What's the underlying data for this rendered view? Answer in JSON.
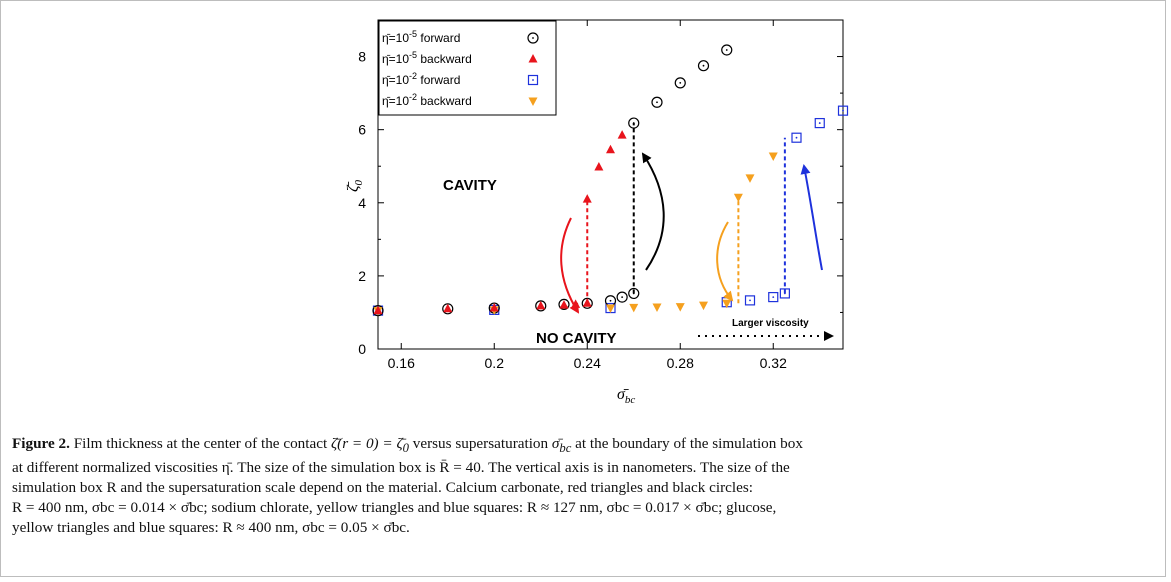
{
  "chart_data": {
    "type": "scatter",
    "xlabel": "σ̄bc",
    "ylabel": "ζ̄0",
    "xlim": [
      0.15,
      0.35
    ],
    "ylim": [
      0,
      9
    ],
    "xticks": [
      "0.16",
      "0.2",
      "0.24",
      "0.28",
      "0.32"
    ],
    "xtick_values": [
      0.16,
      0.2,
      0.24,
      0.28,
      0.32
    ],
    "yticks": [
      "0",
      "2",
      "4",
      "6",
      "8"
    ],
    "ytick_values": [
      0,
      2,
      4,
      6,
      8
    ],
    "legend_placement": "top-left",
    "series": [
      {
        "name": "η̄=10⁻⁵ forward",
        "legend_prefix": "η̄=10",
        "legend_exp": "-5",
        "legend_suffix": " forward",
        "marker": "circle",
        "color": "#000000",
        "x": [
          0.15,
          0.18,
          0.2,
          0.22,
          0.23,
          0.24,
          0.25,
          0.255,
          0.26,
          0.26,
          0.27,
          0.28,
          0.29,
          0.3
        ],
        "y": [
          1.05,
          1.1,
          1.12,
          1.18,
          1.22,
          1.25,
          1.32,
          1.42,
          1.52,
          6.18,
          6.75,
          7.28,
          7.75,
          8.18
        ]
      },
      {
        "name": "η̄=10⁻⁵ backward",
        "legend_prefix": "η̄=10",
        "legend_exp": "-5",
        "legend_suffix": " backward",
        "marker": "triangle-up",
        "color": "#e8141c",
        "x": [
          0.15,
          0.18,
          0.2,
          0.22,
          0.23,
          0.235,
          0.24,
          0.24,
          0.245,
          0.25,
          0.255
        ],
        "y": [
          1.05,
          1.1,
          1.12,
          1.18,
          1.2,
          1.22,
          1.25,
          4.1,
          4.98,
          5.45,
          5.85
        ]
      },
      {
        "name": "η̄=10⁻² forward",
        "legend_prefix": "η̄=10",
        "legend_exp": "-2",
        "legend_suffix": " forward",
        "marker": "square",
        "color": "#1e32dc",
        "x": [
          0.15,
          0.2,
          0.25,
          0.3,
          0.31,
          0.32,
          0.325,
          0.33,
          0.34,
          0.35
        ],
        "y": [
          1.05,
          1.07,
          1.12,
          1.28,
          1.33,
          1.42,
          1.52,
          5.78,
          6.18,
          6.52
        ]
      },
      {
        "name": "η̄=10⁻² backward",
        "legend_prefix": "η̄=10",
        "legend_exp": "-2",
        "legend_suffix": " backward",
        "marker": "triangle-down",
        "color": "#f5a01e",
        "x": [
          0.15,
          0.2,
          0.25,
          0.26,
          0.27,
          0.28,
          0.29,
          0.3,
          0.305,
          0.31,
          0.32
        ],
        "y": [
          1.05,
          1.07,
          1.12,
          1.14,
          1.15,
          1.16,
          1.2,
          1.25,
          4.15,
          4.68,
          5.28
        ]
      }
    ],
    "annotations": {
      "cavity": "CAVITY",
      "no_cavity": "NO CAVITY",
      "larger_viscosity": "Larger viscosity"
    },
    "dashed_lines": [
      {
        "x": 0.24,
        "y0": 1.25,
        "y1": 4.1,
        "color": "#e8141c"
      },
      {
        "x": 0.26,
        "y0": 1.52,
        "y1": 6.18,
        "color": "#000000"
      },
      {
        "x": 0.305,
        "y0": 1.25,
        "y1": 4.15,
        "color": "#f5a01e"
      },
      {
        "x": 0.325,
        "y0": 1.52,
        "y1": 5.78,
        "color": "#1e32dc"
      }
    ]
  },
  "caption": {
    "label": "Figure 2.",
    "line1_a": " Film thickness at the center of the contact ",
    "line1_math1": "ζ̄(r = 0) = ζ̄",
    "line1_math1_sub": "0",
    "line1_b": " versus supersaturation ",
    "line1_math2": "σ̄",
    "line1_math2_sub": "bc",
    "line1_c": " at the boundary of the simulation box",
    "line2": "at different normalized viscosities η̄. The size of the simulation box is R̄ = 40. The vertical axis is in nanometers. The size of the",
    "line3": "simulation box R and the supersaturation scale depend on the material. Calcium carbonate, red triangles and black circles:",
    "line4": "R = 400 nm, σbc = 0.014 × σ̄bc; sodium chlorate, yellow triangles and blue squares: R ≈ 127 nm, σbc = 0.017 × σ̄bc; glucose,",
    "line5": "yellow triangles and blue squares: R ≈ 400  nm, σbc = 0.05 × σ̄bc."
  }
}
